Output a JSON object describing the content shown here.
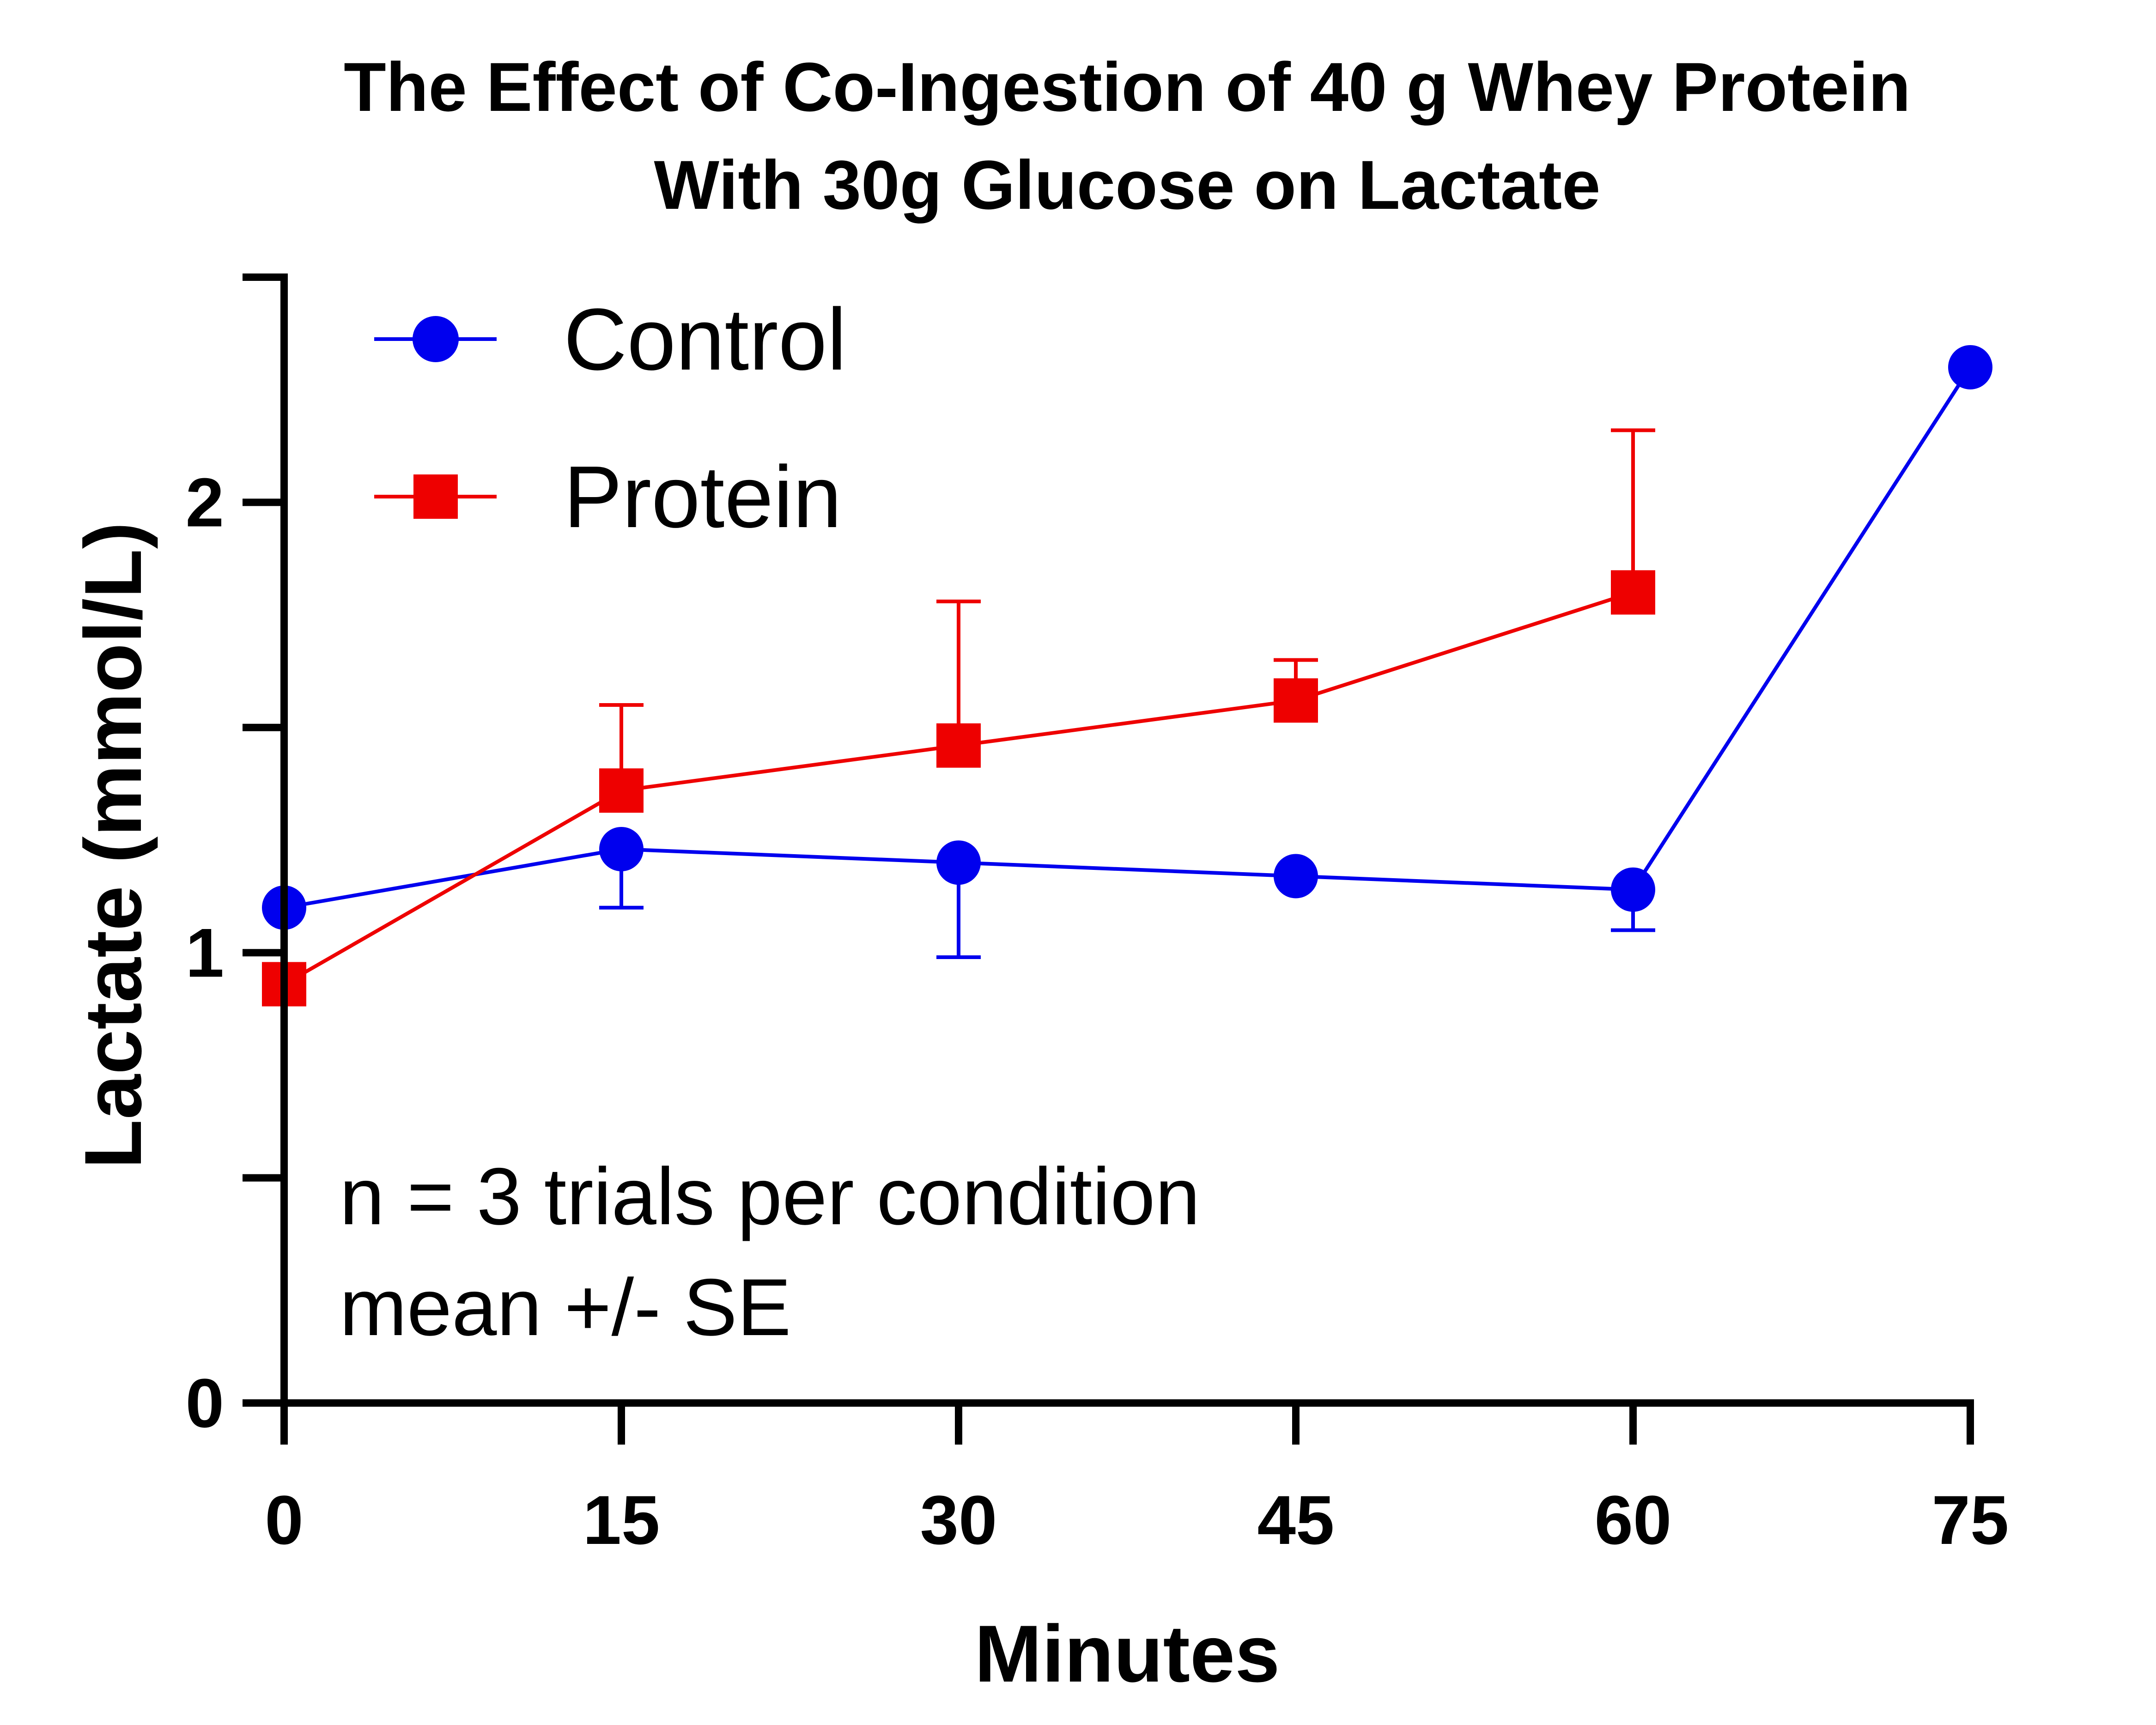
{
  "chart_data": {
    "type": "line",
    "title_lines": [
      "The Effect of Co-Ingestion of 40 g Whey Protein",
      "With 30g Glucose on Lactate"
    ],
    "xlabel": "Minutes",
    "ylabel": "Lactate (mmol/L)",
    "xlim": [
      0,
      75
    ],
    "ylim": [
      0,
      2.5
    ],
    "x_ticks": [
      "0",
      "15",
      "30",
      "45",
      "60",
      "75"
    ],
    "x_tick_values": [
      0,
      15,
      30,
      45,
      60,
      75
    ],
    "y_tick_labels": [
      "0",
      "1",
      "2"
    ],
    "y_tick_label_values": [
      0,
      1,
      2
    ],
    "y_minor_ticks": [
      0.5,
      1.5,
      2.5
    ],
    "grid": false,
    "legend_position": "top-left",
    "series": [
      {
        "name": "Control",
        "color": "#0000ee",
        "marker": "circle",
        "x": [
          0,
          15,
          30,
          45,
          60,
          75
        ],
        "y": [
          1.1,
          1.23,
          1.2,
          1.17,
          1.14,
          2.3
        ],
        "error_lower": [
          0.16,
          0.13,
          0.21,
          0,
          0.09,
          0
        ],
        "error_upper": [
          0,
          0,
          0,
          0,
          0,
          0
        ]
      },
      {
        "name": "Protein",
        "color": "#ee0000",
        "marker": "square",
        "x": [
          0,
          15,
          30,
          45,
          60
        ],
        "y": [
          0.93,
          1.36,
          1.46,
          1.56,
          1.8
        ],
        "error_lower": [
          0,
          0,
          0,
          0,
          0
        ],
        "error_upper": [
          0.03,
          0.19,
          0.32,
          0.09,
          0.36
        ]
      }
    ],
    "annotations": [
      "n = 3 trials per condition",
      "mean +/- SE"
    ]
  }
}
